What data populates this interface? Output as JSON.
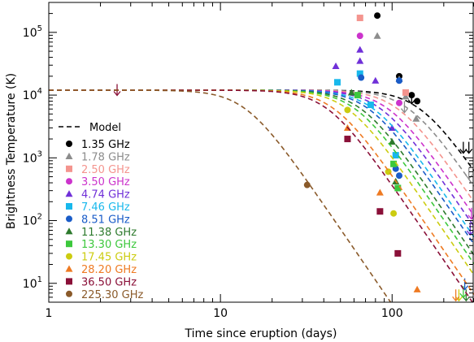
{
  "chart_data": {
    "type": "scatter",
    "xlabel": "Time since eruption (days)",
    "ylabel": "Brightness Temperature (K)",
    "x_scale": "log",
    "y_scale": "log",
    "xlim": [
      1,
      300
    ],
    "ylim": [
      5,
      300000
    ],
    "x_ticks": [
      {
        "value": 1,
        "label": "1"
      },
      {
        "value": 10,
        "label": "10"
      },
      {
        "value": 100,
        "label": "100"
      }
    ],
    "y_ticks": [
      {
        "value": 10,
        "base": "10",
        "exp": "1"
      },
      {
        "value": 100,
        "base": "10",
        "exp": "2"
      },
      {
        "value": 1000,
        "base": "10",
        "exp": "3"
      },
      {
        "value": 10000,
        "base": "10",
        "exp": "4"
      },
      {
        "value": 100000,
        "base": "10",
        "exp": "5"
      }
    ],
    "grid": false,
    "legend_position": "left",
    "model_label": "Model",
    "series": [
      {
        "name": "1.35 GHz",
        "color": "#000000",
        "marker": "circle",
        "model_break": 145,
        "points": [
          [
            82,
            185000
          ],
          [
            110,
            20000
          ],
          [
            130,
            10000
          ],
          [
            140,
            8000
          ]
        ],
        "upper_limits": [
          [
            130,
            11000
          ],
          [
            260,
            1800
          ],
          [
            280,
            1800
          ]
        ]
      },
      {
        "name": "1.78 GHz",
        "color": "#8c8c8c",
        "marker": "triangle",
        "model_break": 125,
        "points": [
          [
            82,
            88000
          ],
          [
            110,
            18000
          ],
          [
            120,
            9500
          ],
          [
            138,
            4200
          ]
        ],
        "upper_limits": [
          [
            118,
            8000
          ],
          [
            280,
            700
          ]
        ]
      },
      {
        "name": "2.50 GHz",
        "color": "#f4948e",
        "marker": "square",
        "model_break": 108,
        "points": [
          [
            65,
            170000
          ],
          [
            120,
            11000
          ]
        ],
        "upper_limits": []
      },
      {
        "name": "3.50 GHz",
        "color": "#cc33cc",
        "marker": "circle",
        "model_break": 95,
        "points": [
          [
            65,
            88000
          ],
          [
            110,
            7500
          ]
        ],
        "upper_limits": [
          [
            290,
            160
          ]
        ]
      },
      {
        "name": "4.74 GHz",
        "color": "#7030d8",
        "marker": "triangle",
        "model_break": 86,
        "points": [
          [
            47,
            29000
          ],
          [
            65,
            53000
          ],
          [
            65,
            35000
          ],
          [
            80,
            17000
          ],
          [
            100,
            3000
          ]
        ],
        "upper_limits": [
          [
            285,
            90
          ]
        ]
      },
      {
        "name": "7.46 GHz",
        "color": "#18b8ec",
        "marker": "square",
        "model_break": 78,
        "points": [
          [
            48,
            16000
          ],
          [
            65,
            22000
          ],
          [
            75,
            7000
          ],
          [
            105,
            1100
          ]
        ],
        "upper_limits": []
      },
      {
        "name": "8.51 GHz",
        "color": "#1a5cc8",
        "marker": "circle",
        "model_break": 73,
        "points": [
          [
            66,
            19000
          ],
          [
            110,
            17000
          ],
          [
            105,
            670
          ],
          [
            110,
            520
          ]
        ],
        "upper_limits": [
          [
            265,
            12
          ]
        ]
      },
      {
        "name": "11.38 GHz",
        "color": "#2d7a2d",
        "marker": "triangle",
        "model_break": 66,
        "points": [
          [
            58,
            11000
          ],
          [
            100,
            1800
          ],
          [
            105,
            420
          ]
        ],
        "upper_limits": [
          [
            270,
            8
          ]
        ]
      },
      {
        "name": "13.30 GHz",
        "color": "#3cc83c",
        "marker": "square",
        "model_break": 61,
        "points": [
          [
            63,
            10000
          ],
          [
            102,
            800
          ],
          [
            108,
            330
          ]
        ],
        "upper_limits": [
          [
            260,
            9
          ]
        ]
      },
      {
        "name": "17.45 GHz",
        "color": "#cccc10",
        "marker": "circle",
        "model_break": 55,
        "points": [
          [
            55,
            5800
          ],
          [
            95,
            600
          ],
          [
            102,
            130
          ]
        ],
        "upper_limits": [
          [
            245,
            8
          ]
        ]
      },
      {
        "name": "28.20 GHz",
        "color": "#ee7a22",
        "marker": "triangle",
        "model_break": 46,
        "points": [
          [
            55,
            3000
          ],
          [
            85,
            280
          ],
          [
            140,
            8
          ]
        ],
        "upper_limits": [
          [
            235,
            8
          ]
        ]
      },
      {
        "name": "36.50 GHz",
        "color": "#8a1038",
        "marker": "square",
        "model_break": 42,
        "points": [
          [
            55,
            2000
          ],
          [
            85,
            140
          ],
          [
            108,
            30
          ]
        ],
        "upper_limits": [
          [
            2.5,
            15000
          ]
        ]
      },
      {
        "name": "225.30 GHz",
        "color": "#8a5a2a",
        "marker": "circle",
        "model_break": 14,
        "points": [
          [
            32,
            370
          ]
        ],
        "upper_limits": []
      }
    ]
  }
}
